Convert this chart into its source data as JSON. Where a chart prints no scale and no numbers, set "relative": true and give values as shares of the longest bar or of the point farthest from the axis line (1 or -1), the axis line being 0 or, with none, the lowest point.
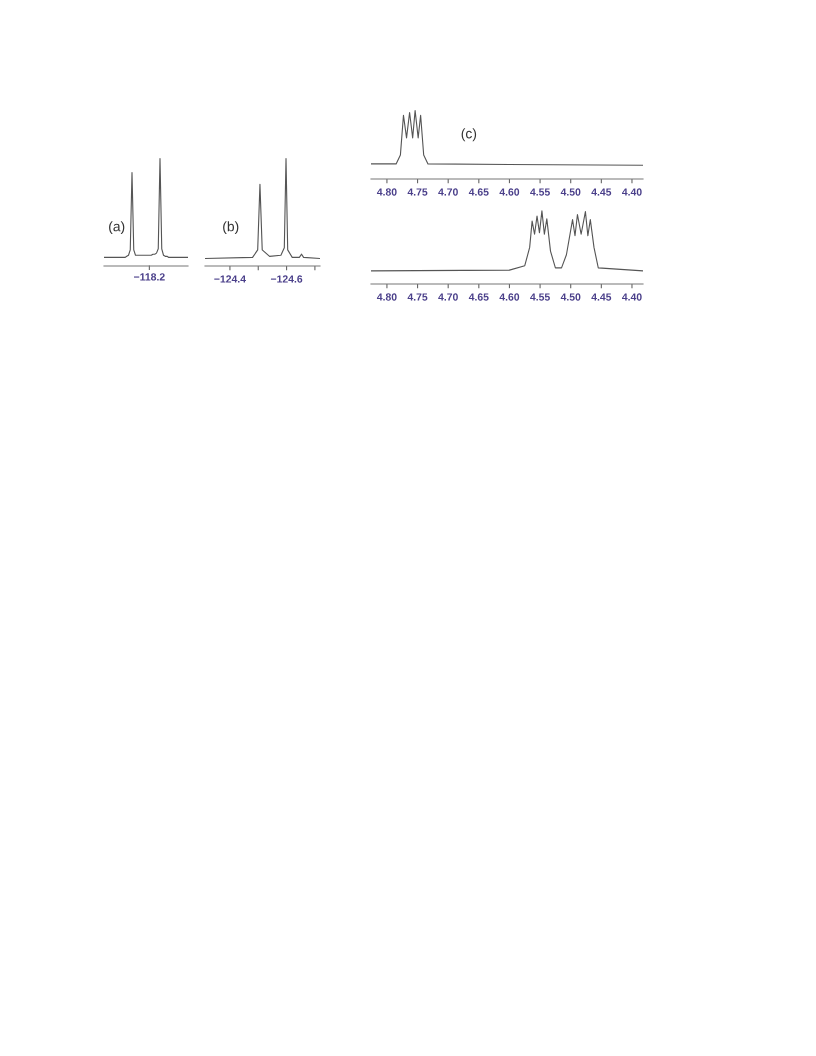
{
  "chart_data": [
    {
      "type": "line",
      "relative": true,
      "annotations": [
        "(a)",
        "−118.2"
      ],
      "tick_labels": false,
      "grid": false,
      "legend": false,
      "categories": [
        null,
        null,
        null,
        null,
        null,
        null,
        null,
        null,
        null,
        null,
        null,
        null,
        null,
        null,
        null,
        null,
        null,
        null,
        null,
        null,
        null,
        null,
        null,
        null,
        null,
        null,
        null,
        null,
        null,
        null,
        null,
        null,
        null,
        null,
        null,
        null,
        null,
        null,
        null,
        null,
        null,
        null,
        null,
        null,
        null,
        null,
        null,
        null,
        null
      ],
      "series": [
        {
          "color": "#555555",
          "values": [
            0.08,
            0.08,
            0.08,
            0.08,
            0.08,
            0.08,
            0.08,
            0.08,
            0.08,
            0.08,
            0.08,
            0.08,
            0.08,
            0.09,
            0.1,
            0.15,
            0.87,
            0.15,
            0.1,
            0.1,
            0.1,
            0.1,
            0.1,
            0.1,
            0.1,
            0.1,
            0.1,
            0.1,
            0.11,
            0.11,
            0.12,
            0.16,
            1.0,
            0.16,
            0.1,
            0.09,
            0.09,
            0.08,
            0.08,
            0.08,
            0.08,
            0.08,
            0.08,
            0.08,
            0.08,
            0.08,
            0.08,
            0.08,
            0.08
          ]
        }
      ]
    },
    {
      "type": "line",
      "relative": true,
      "annotations": [
        "(b)"
      ],
      "xlim": [
        -124.312,
        -124.718
      ],
      "xticks": [
        {
          "value": -124.4,
          "label": "−124.4"
        },
        {
          "value": -124.5,
          "label": null
        },
        {
          "value": -124.6,
          "label": "−124.6"
        },
        {
          "value": -124.7,
          "label": null
        }
      ],
      "tick_labels": "x",
      "grid": false,
      "legend": false,
      "series": [
        {
          "color": "#555555",
          "x": [
            -124.312,
            -124.48,
            -124.498,
            -124.506,
            -124.514,
            -124.54,
            -124.58,
            -124.592,
            -124.598,
            -124.604,
            -124.62,
            -124.645,
            -124.653,
            -124.66,
            -124.718
          ],
          "values": [
            0.07,
            0.08,
            0.15,
            0.76,
            0.15,
            0.09,
            0.1,
            0.17,
            1.0,
            0.15,
            0.08,
            0.08,
            0.11,
            0.08,
            0.07
          ]
        }
      ]
    },
    {
      "type": "line",
      "relative": true,
      "annotations": [
        "(c)"
      ],
      "xlim": [
        4.826,
        4.382
      ],
      "xticks": [
        {
          "value": 4.8,
          "label": "4.80"
        },
        {
          "value": 4.75,
          "label": "4.75"
        },
        {
          "value": 4.7,
          "label": "4.70"
        },
        {
          "value": 4.65,
          "label": "4.65"
        },
        {
          "value": 4.6,
          "label": "4.60"
        },
        {
          "value": 4.55,
          "label": "4.55"
        },
        {
          "value": 4.5,
          "label": "4.50"
        },
        {
          "value": 4.45,
          "label": "4.45"
        },
        {
          "value": 4.4,
          "label": "4.40"
        }
      ],
      "tick_labels": "x",
      "grid": false,
      "legend": false,
      "series": [
        {
          "color": "#555555",
          "x": [
            4.826,
            4.785,
            4.778,
            4.773,
            4.768,
            4.763,
            4.758,
            4.754,
            4.749,
            4.745,
            4.74,
            4.733,
            4.382
          ],
          "values": [
            0.22,
            0.22,
            0.35,
            0.93,
            0.6,
            0.97,
            0.6,
            1.0,
            0.6,
            0.93,
            0.35,
            0.22,
            0.2
          ]
        }
      ]
    },
    {
      "type": "line",
      "relative": true,
      "xlim": [
        4.826,
        4.382
      ],
      "xticks": [
        {
          "value": 4.8,
          "label": "4.80"
        },
        {
          "value": 4.75,
          "label": "4.75"
        },
        {
          "value": 4.7,
          "label": "4.70"
        },
        {
          "value": 4.65,
          "label": "4.65"
        },
        {
          "value": 4.6,
          "label": "4.60"
        },
        {
          "value": 4.55,
          "label": "4.55"
        },
        {
          "value": 4.5,
          "label": "4.50"
        },
        {
          "value": 4.45,
          "label": "4.45"
        },
        {
          "value": 4.4,
          "label": "4.40"
        }
      ],
      "tick_labels": "x",
      "grid": false,
      "legend": false,
      "series": [
        {
          "color": "#555555",
          "x": [
            4.826,
            4.6,
            4.575,
            4.567,
            4.563,
            4.559,
            4.555,
            4.551,
            4.547,
            4.543,
            4.539,
            4.533,
            4.525,
            4.515,
            4.507,
            4.497,
            4.493,
            4.489,
            4.483,
            4.476,
            4.472,
            4.468,
            4.462,
            4.455,
            4.382
          ],
          "values": [
            0.18,
            0.19,
            0.25,
            0.5,
            0.86,
            0.68,
            0.93,
            0.7,
            1.0,
            0.68,
            0.89,
            0.45,
            0.22,
            0.22,
            0.4,
            0.88,
            0.66,
            0.95,
            0.68,
            0.99,
            0.66,
            0.88,
            0.5,
            0.22,
            0.18
          ]
        }
      ]
    }
  ]
}
